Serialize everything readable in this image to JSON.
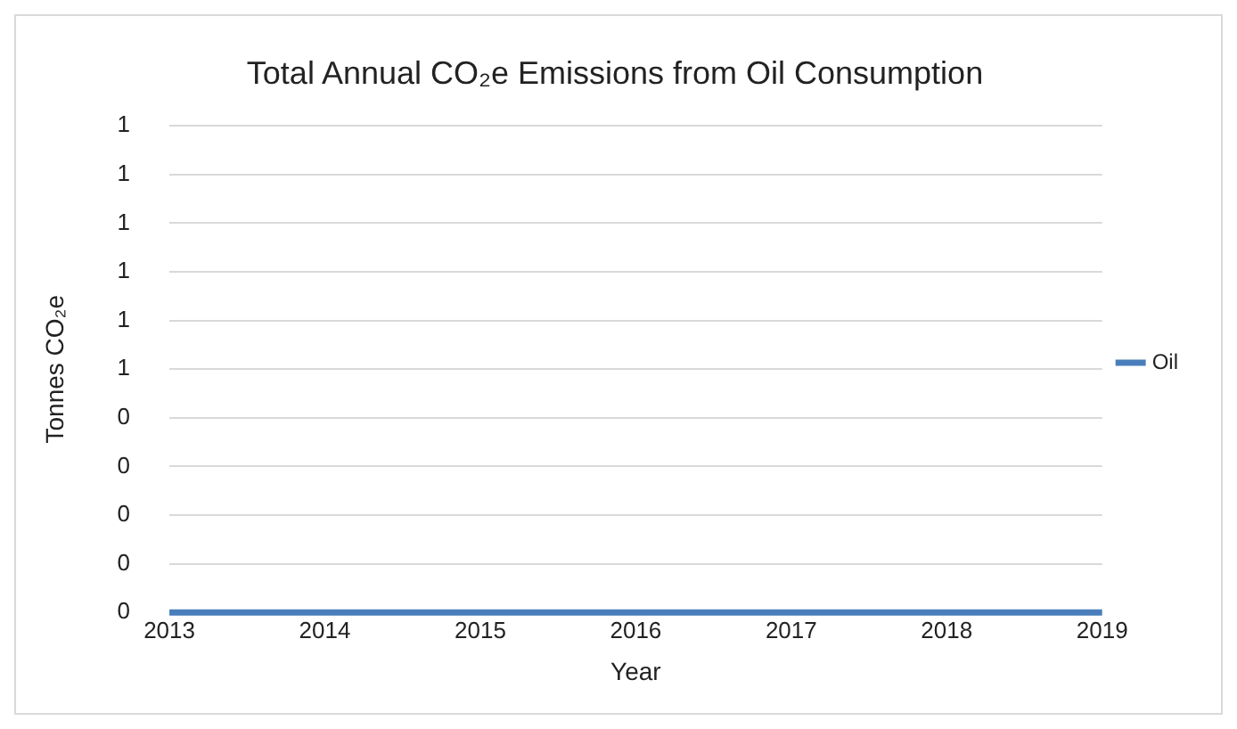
{
  "chart_data": {
    "type": "line",
    "title": "Total Annual CO₂e Emissions from Oil Consumption",
    "xlabel": "Year",
    "ylabel": "Tonnes CO₂e",
    "categories": [
      "2013",
      "2014",
      "2015",
      "2016",
      "2017",
      "2018",
      "2019"
    ],
    "series": [
      {
        "name": "Oil",
        "color": "#4a7ebb",
        "values": [
          0,
          0,
          0,
          0,
          0,
          0,
          0
        ]
      }
    ],
    "ylim": [
      0,
      1
    ],
    "yticks": [
      {
        "value": 0,
        "label": "0"
      },
      {
        "value": 0.1,
        "label": "0"
      },
      {
        "value": 0.2,
        "label": "0"
      },
      {
        "value": 0.3,
        "label": "0"
      },
      {
        "value": 0.4,
        "label": "0"
      },
      {
        "value": 0.5,
        "label": "1"
      },
      {
        "value": 0.6,
        "label": "1"
      },
      {
        "value": 0.7,
        "label": "1"
      },
      {
        "value": 0.8,
        "label": "1"
      },
      {
        "value": 0.9,
        "label": "1"
      },
      {
        "value": 1,
        "label": "1"
      }
    ],
    "grid": "y",
    "legend": "right",
    "marker": "none",
    "line_style": "solid"
  }
}
